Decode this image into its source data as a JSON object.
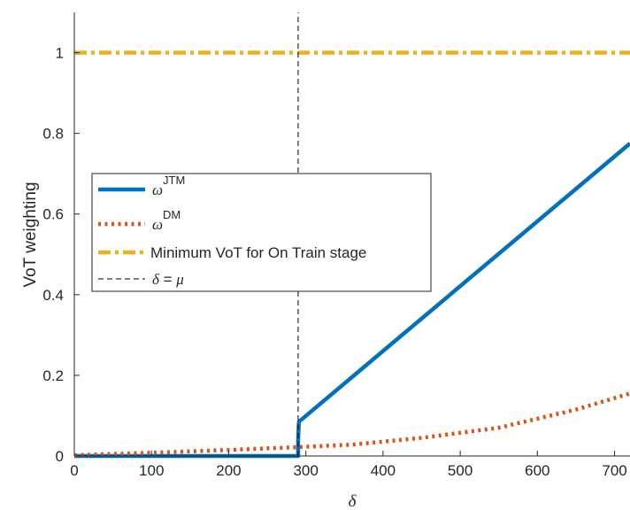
{
  "chart_data": {
    "type": "line",
    "xlabel": "δ",
    "ylabel": "VoT weighting",
    "xlim": [
      0,
      720
    ],
    "ylim": [
      0,
      1.1
    ],
    "xticks": [
      0,
      100,
      200,
      300,
      400,
      500,
      600,
      700
    ],
    "yticks": [
      0,
      0.2,
      0.4,
      0.6,
      0.8,
      1
    ],
    "ytick_labels": [
      "0",
      "0.2",
      "0.4",
      "0.6",
      "0.8",
      "1"
    ],
    "grid": false,
    "legend_position": "middle-left",
    "series": [
      {
        "id": "jtm",
        "legend_symbol": "ω",
        "legend_sup": "JTM",
        "color": "#0072BD",
        "style": "solid",
        "x": [
          0,
          290,
          290,
          291,
          720
        ],
        "y": [
          0,
          0,
          0.04,
          0.085,
          0.775
        ]
      },
      {
        "id": "dm",
        "legend_symbol": "ω",
        "legend_sup": "DM",
        "color": "#D95319",
        "style": "dotted",
        "x": [
          0,
          100,
          200,
          290,
          360,
          450,
          550,
          650,
          720
        ],
        "y": [
          0.002,
          0.008,
          0.015,
          0.022,
          0.028,
          0.045,
          0.07,
          0.115,
          0.155
        ]
      },
      {
        "id": "min-vot",
        "legend_label": "Minimum VoT for On Train stage",
        "color": "#EDB120",
        "style": "dashdot",
        "x": [
          0,
          720
        ],
        "y": [
          1,
          1
        ]
      },
      {
        "id": "delta-mu",
        "legend_label": "δ = μ",
        "color": "#000000",
        "style": "dashed",
        "x": [
          290,
          290
        ],
        "y": [
          0,
          1.1
        ]
      }
    ],
    "legend": {
      "jtm_symbol": "ω",
      "jtm_sup": "JTM",
      "dm_symbol": "ω",
      "dm_sup": "DM",
      "min_label": "Minimum VoT for On Train stage",
      "delta_label_left": "δ",
      "delta_label_eq": " = ",
      "delta_label_right": "μ"
    }
  }
}
